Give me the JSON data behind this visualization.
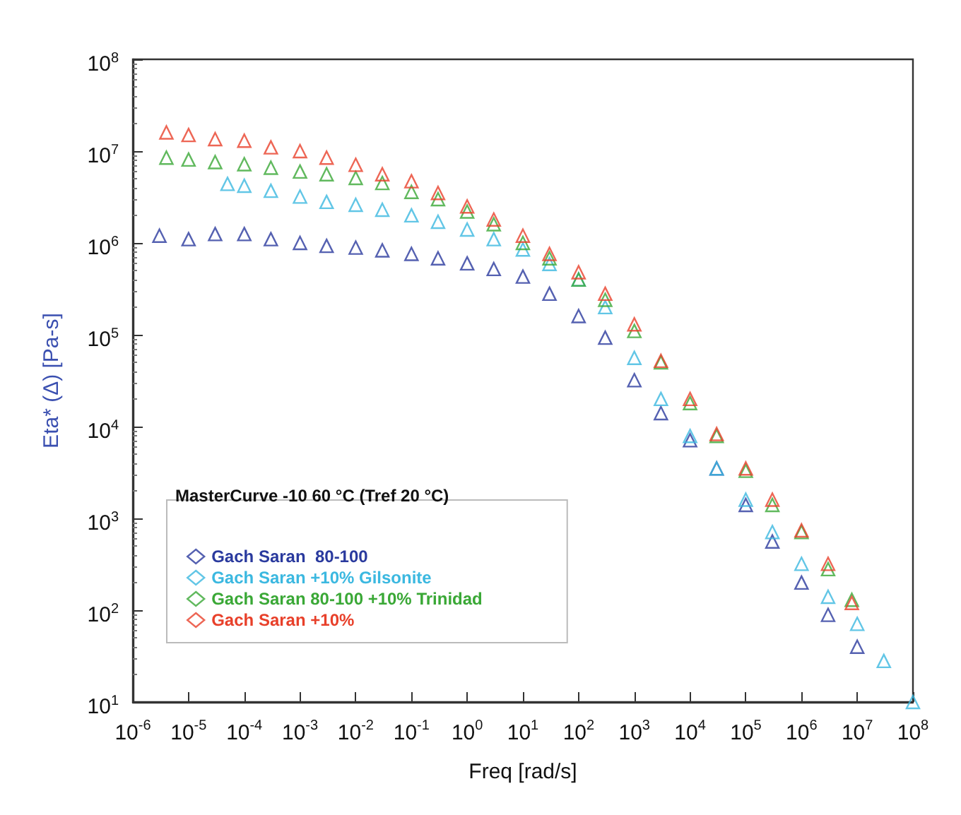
{
  "chart_data": {
    "type": "scatter",
    "xlabel": "Freq [rad/s]",
    "ylabel": "Eta* (Δ) [Pa-s]",
    "legend_title": "MasterCurve -10 60 °C (Tref 20 °C)",
    "log": "xy",
    "grid": false,
    "legend": "bottom left",
    "marker": "triangle",
    "xlim": [
      1e-06,
      100000000
    ],
    "ylim": [
      10,
      100000000
    ],
    "xticks": [
      {
        "value": 1e-06,
        "label": "10$^{-6}$"
      },
      {
        "value": 1e-05,
        "label": "10$^{-5}$"
      },
      {
        "value": 0.0001,
        "label": "10$^{-4}$"
      },
      {
        "value": 0.001,
        "label": "10$^{-3}$"
      },
      {
        "value": 0.01,
        "label": "10$^{-2}$"
      },
      {
        "value": 0.1,
        "label": "10$^{-1}$"
      },
      {
        "value": 1,
        "label": "10$^{0}$"
      },
      {
        "value": 10,
        "label": "10$^{1}$"
      },
      {
        "value": 100,
        "label": "10$^{2}$"
      },
      {
        "value": 1000,
        "label": "10$^{3}$"
      },
      {
        "value": 10000,
        "label": "10$^{4}$"
      },
      {
        "value": 100000,
        "label": "10$^{5}$"
      },
      {
        "value": 1000000,
        "label": "10$^{6}$"
      },
      {
        "value": 10000000,
        "label": "10$^{7}$"
      },
      {
        "value": 100000000,
        "label": "10$^{8}$"
      }
    ],
    "yticks": [
      {
        "value": 10,
        "label": "10$^{1}$"
      },
      {
        "value": 100,
        "label": "10$^{2}$"
      },
      {
        "value": 1000,
        "label": "10$^{3}$"
      },
      {
        "value": 10000,
        "label": "10$^{4}$"
      },
      {
        "value": 100000,
        "label": "10$^{5}$"
      },
      {
        "value": 1000000,
        "label": "10$^{6}$"
      },
      {
        "value": 10000000,
        "label": "10$^{7}$"
      },
      {
        "value": 100000000,
        "label": "10$^{8}$"
      }
    ],
    "series": [
      {
        "name": "Gach Saran  80-100",
        "color": "#2a3a9e",
        "x": [
          3e-06,
          1e-05,
          3e-05,
          0.0001,
          0.0003,
          0.001,
          0.003,
          0.01,
          0.03,
          0.1,
          0.3,
          1,
          3,
          10,
          30,
          100,
          300,
          1000,
          3000,
          10000.0,
          30000.0,
          100000.0,
          300000.0,
          1000000.0,
          3000000.0,
          10000000.0
        ],
        "values": [
          1200000.0,
          1100000.0,
          1250000.0,
          1250000.0,
          1100000.0,
          1000000.0,
          930000.0,
          890000.0,
          830000.0,
          760000.0,
          680000.0,
          600000.0,
          520000.0,
          430000.0,
          280000.0,
          160000.0,
          93000.0,
          32000.0,
          14000.0,
          7100.0,
          3500.0,
          1400.0,
          560,
          200,
          89,
          40
        ]
      },
      {
        "name": "Gach Saran +10% Gilsonite",
        "color": "#3bb8e0",
        "x": [
          5e-05,
          0.0001,
          0.0003,
          0.001,
          0.003,
          0.01,
          0.03,
          0.1,
          0.3,
          1,
          3,
          10,
          30,
          100,
          300,
          1000,
          3000,
          10000.0,
          30000.0,
          100000.0,
          300000.0,
          1000000.0,
          3000000.0,
          10000000.0,
          30000000.0,
          100000000.0
        ],
        "values": [
          4400000.0,
          4200000.0,
          3700000.0,
          3200000.0,
          2800000.0,
          2600000.0,
          2300000.0,
          2000000.0,
          1700000.0,
          1400000.0,
          1100000.0,
          850000.0,
          590000.0,
          400000.0,
          200000.0,
          56000.0,
          20000.0,
          7900.0,
          3500.0,
          1600.0,
          710,
          320,
          140,
          71,
          28,
          10
        ]
      },
      {
        "name": "Gach Saran 80-100 +10% Trinidad",
        "color": "#3aa836",
        "x": [
          4e-06,
          1e-05,
          3e-05,
          0.0001,
          0.0003,
          0.001,
          0.003,
          0.01,
          0.03,
          0.1,
          0.3,
          1,
          3,
          10,
          30,
          100,
          300,
          1000,
          3000,
          10000.0,
          30000.0,
          100000.0,
          300000.0,
          1000000.0,
          3000000.0,
          8000000.0
        ],
        "values": [
          8500000.0,
          8100000.0,
          7600000.0,
          7200000.0,
          6600000.0,
          6000000.0,
          5600000.0,
          5100000.0,
          4500000.0,
          3600000.0,
          3000000.0,
          2200000.0,
          1600000.0,
          1000000.0,
          680000.0,
          400000.0,
          240000.0,
          110000.0,
          50000.0,
          18000.0,
          7900.0,
          3300.0,
          1400.0,
          710,
          280,
          130
        ]
      },
      {
        "name": "Gach Saran +10%",
        "color": "#e8402a",
        "x": [
          4e-06,
          1e-05,
          3e-05,
          0.0001,
          0.0003,
          0.001,
          0.003,
          0.01,
          0.03,
          0.1,
          0.3,
          1,
          3,
          10,
          30,
          100,
          300,
          1000,
          3000,
          10000.0,
          30000.0,
          100000.0,
          300000.0,
          1000000.0,
          3000000.0,
          8000000.0
        ],
        "values": [
          16000000.0,
          15000000.0,
          13500000.0,
          13000000.0,
          11000000.0,
          10000000.0,
          8500000.0,
          7100000.0,
          5600000.0,
          4700000.0,
          3500000.0,
          2500000.0,
          1800000.0,
          1200000.0,
          760000.0,
          480000.0,
          280000.0,
          130000.0,
          52000.0,
          20000.0,
          8300.0,
          3500.0,
          1600.0,
          740,
          320,
          120
        ]
      }
    ]
  }
}
